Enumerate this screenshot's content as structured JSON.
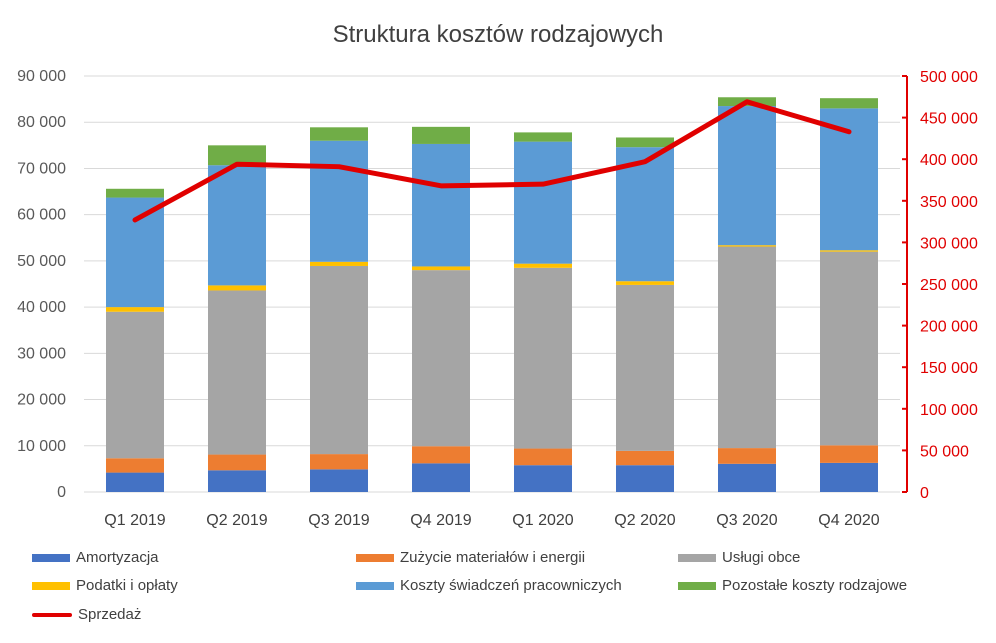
{
  "chart_data": {
    "type": "bar",
    "stacked": true,
    "title": "Struktura kosztów rodzajowych",
    "categories": [
      "Q1 2019",
      "Q2 2019",
      "Q3 2019",
      "Q4 2019",
      "Q1 2020",
      "Q2 2020",
      "Q3 2020",
      "Q4 2020"
    ],
    "y_left": {
      "lim": [
        0,
        90000
      ],
      "ticks": [
        "0",
        "10 000",
        "20 000",
        "30 000",
        "40 000",
        "50 000",
        "60 000",
        "70 000",
        "80 000",
        "90 000"
      ]
    },
    "y_right": {
      "lim": [
        0,
        500000
      ],
      "ticks": [
        "0",
        "50 000",
        "100 000",
        "150 000",
        "200 000",
        "250 000",
        "300 000",
        "350 000",
        "400 000",
        "450 000",
        "500 000"
      ],
      "color": "#e00000"
    },
    "grid": true,
    "legend_position": "bottom",
    "series": [
      {
        "name": "Amortyzacja",
        "color": "#4472c4",
        "values": [
          4200,
          4700,
          4900,
          6200,
          5800,
          5800,
          6100,
          6300
        ]
      },
      {
        "name": "Zużycie materiałów i energii",
        "color": "#ed7d31",
        "values": [
          3100,
          3400,
          3300,
          3700,
          3600,
          3100,
          3400,
          3800
        ]
      },
      {
        "name": "Usługi obce",
        "color": "#a5a5a5",
        "values": [
          31700,
          35500,
          40700,
          38100,
          39100,
          35900,
          43600,
          41900
        ]
      },
      {
        "name": "Podatki i opłaty",
        "color": "#ffc000",
        "values": [
          1000,
          1100,
          900,
          800,
          900,
          800,
          300,
          300
        ]
      },
      {
        "name": "Koszty świadczeń pracowniczych",
        "color": "#5b9bd5",
        "values": [
          23700,
          26000,
          26200,
          26500,
          26400,
          29000,
          30100,
          30700
        ]
      },
      {
        "name": "Pozostałe koszty rodzajowe",
        "color": "#70ad47",
        "values": [
          1900,
          4300,
          2900,
          3700,
          2000,
          2100,
          1900,
          2200
        ]
      }
    ],
    "line_series": {
      "name": "Sprzedaż",
      "color": "#e00000",
      "axis": "right",
      "values": [
        327000,
        394000,
        391000,
        368000,
        370000,
        397000,
        469000,
        433000
      ]
    }
  }
}
